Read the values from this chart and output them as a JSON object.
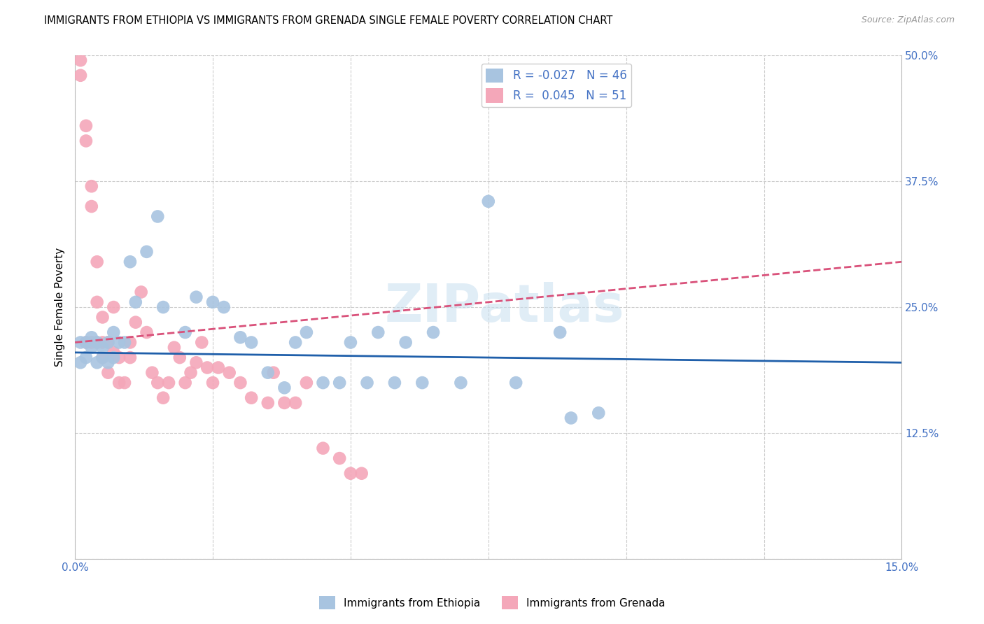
{
  "title": "IMMIGRANTS FROM ETHIOPIA VS IMMIGRANTS FROM GRENADA SINGLE FEMALE POVERTY CORRELATION CHART",
  "source": "Source: ZipAtlas.com",
  "ylabel": "Single Female Poverty",
  "yticks": [
    0.0,
    0.125,
    0.25,
    0.375,
    0.5
  ],
  "ytick_labels": [
    "",
    "12.5%",
    "25.0%",
    "37.5%",
    "50.0%"
  ],
  "xmin": 0.0,
  "xmax": 0.15,
  "ymin": 0.0,
  "ymax": 0.5,
  "ethiopia_R": -0.027,
  "ethiopia_N": 46,
  "grenada_R": 0.045,
  "grenada_N": 51,
  "color_ethiopia": "#a8c4e0",
  "color_grenada": "#f4a7b9",
  "color_ethiopia_line": "#1f5faa",
  "color_grenada_line": "#d9517a",
  "watermark": "ZIPatlas",
  "ethiopia_line_x": [
    0.0,
    0.15
  ],
  "ethiopia_line_y": [
    0.205,
    0.195
  ],
  "grenada_line_x": [
    0.0,
    0.15
  ],
  "grenada_line_y": [
    0.215,
    0.295
  ],
  "ethiopia_x": [
    0.001,
    0.001,
    0.002,
    0.002,
    0.003,
    0.003,
    0.004,
    0.004,
    0.005,
    0.005,
    0.006,
    0.006,
    0.007,
    0.007,
    0.008,
    0.009,
    0.01,
    0.011,
    0.013,
    0.015,
    0.016,
    0.02,
    0.022,
    0.025,
    0.027,
    0.03,
    0.032,
    0.035,
    0.038,
    0.04,
    0.042,
    0.045,
    0.048,
    0.05,
    0.053,
    0.055,
    0.058,
    0.06,
    0.063,
    0.065,
    0.07,
    0.075,
    0.08,
    0.088,
    0.09,
    0.095
  ],
  "ethiopia_y": [
    0.215,
    0.195,
    0.215,
    0.2,
    0.21,
    0.22,
    0.195,
    0.215,
    0.21,
    0.2,
    0.195,
    0.215,
    0.225,
    0.2,
    0.215,
    0.215,
    0.295,
    0.255,
    0.305,
    0.34,
    0.25,
    0.225,
    0.26,
    0.255,
    0.25,
    0.22,
    0.215,
    0.185,
    0.17,
    0.215,
    0.225,
    0.175,
    0.175,
    0.215,
    0.175,
    0.225,
    0.175,
    0.215,
    0.175,
    0.225,
    0.175,
    0.355,
    0.175,
    0.225,
    0.14,
    0.145
  ],
  "grenada_x": [
    0.001,
    0.001,
    0.002,
    0.002,
    0.002,
    0.003,
    0.003,
    0.003,
    0.004,
    0.004,
    0.004,
    0.005,
    0.005,
    0.005,
    0.006,
    0.006,
    0.007,
    0.007,
    0.008,
    0.008,
    0.009,
    0.01,
    0.01,
    0.011,
    0.012,
    0.013,
    0.014,
    0.015,
    0.016,
    0.017,
    0.018,
    0.019,
    0.02,
    0.021,
    0.022,
    0.023,
    0.024,
    0.025,
    0.026,
    0.028,
    0.03,
    0.032,
    0.035,
    0.036,
    0.038,
    0.04,
    0.042,
    0.045,
    0.048,
    0.05,
    0.052
  ],
  "grenada_y": [
    0.48,
    0.495,
    0.415,
    0.43,
    0.215,
    0.37,
    0.35,
    0.215,
    0.255,
    0.215,
    0.295,
    0.2,
    0.24,
    0.215,
    0.185,
    0.215,
    0.205,
    0.25,
    0.175,
    0.2,
    0.175,
    0.215,
    0.2,
    0.235,
    0.265,
    0.225,
    0.185,
    0.175,
    0.16,
    0.175,
    0.21,
    0.2,
    0.175,
    0.185,
    0.195,
    0.215,
    0.19,
    0.175,
    0.19,
    0.185,
    0.175,
    0.16,
    0.155,
    0.185,
    0.155,
    0.155,
    0.175,
    0.11,
    0.1,
    0.085,
    0.085
  ]
}
